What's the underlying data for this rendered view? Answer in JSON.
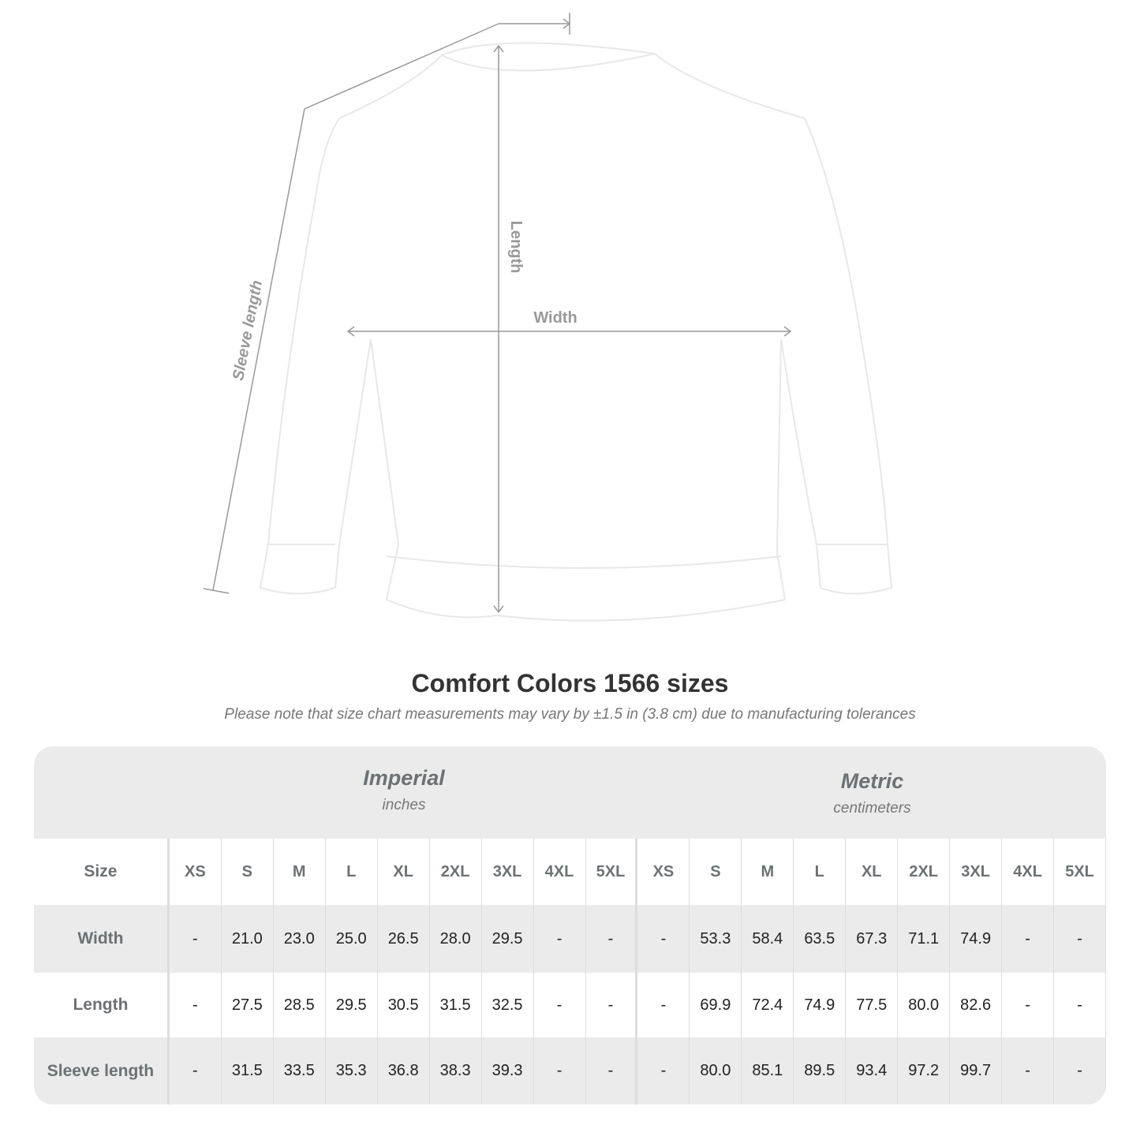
{
  "diagram": {
    "labels": {
      "length": "Length",
      "width": "Width",
      "sleeve": "Sleeve length"
    },
    "colors": {
      "line": "#999999",
      "garment": "#ffffff",
      "outline": "#e6e6e6"
    }
  },
  "title": "Comfort Colors 1566 sizes",
  "subtitle": "Please note that size chart measurements may vary by ±1.5 in (3.8 cm) due to manufacturing tolerances",
  "table": {
    "imperial": {
      "name": "Imperial",
      "unit": "inches"
    },
    "metric": {
      "name": "Metric",
      "unit": "centimeters"
    },
    "size_label": "Size",
    "sizes": [
      "XS",
      "S",
      "M",
      "L",
      "XL",
      "2XL",
      "3XL",
      "4XL",
      "5XL"
    ],
    "rows": [
      {
        "label": "Width",
        "imperial": [
          "-",
          "21.0",
          "23.0",
          "25.0",
          "26.5",
          "28.0",
          "29.5",
          "-",
          "-"
        ],
        "metric": [
          "-",
          "53.3",
          "58.4",
          "63.5",
          "67.3",
          "71.1",
          "74.9",
          "-",
          "-"
        ]
      },
      {
        "label": "Length",
        "imperial": [
          "-",
          "27.5",
          "28.5",
          "29.5",
          "30.5",
          "31.5",
          "32.5",
          "-",
          "-"
        ],
        "metric": [
          "-",
          "69.9",
          "72.4",
          "74.9",
          "77.5",
          "80.0",
          "82.6",
          "-",
          "-"
        ]
      },
      {
        "label": "Sleeve length",
        "imperial": [
          "-",
          "31.5",
          "33.5",
          "35.3",
          "36.8",
          "38.3",
          "39.3",
          "-",
          "-"
        ],
        "metric": [
          "-",
          "80.0",
          "85.1",
          "89.5",
          "93.4",
          "97.2",
          "99.7",
          "-",
          "-"
        ]
      }
    ]
  }
}
